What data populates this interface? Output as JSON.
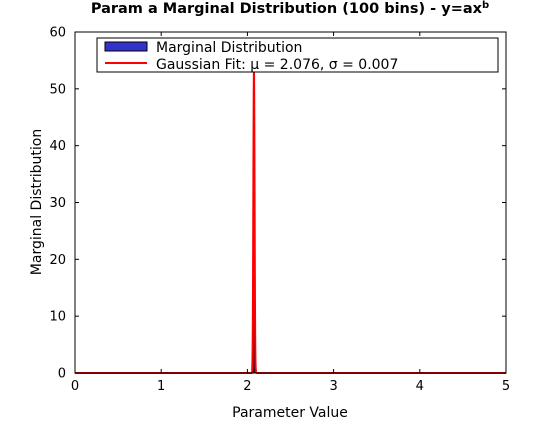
{
  "chart_data": {
    "type": "bar",
    "title": "Param a Marginal Distribution (100 bins) - y=ax",
    "title_superscript": "b",
    "xlabel": "Parameter Value",
    "ylabel": "Marginal Distribution",
    "xlim": [
      0,
      5
    ],
    "ylim": [
      0,
      60
    ],
    "xticks": [
      "0",
      "1",
      "2",
      "3",
      "4",
      "5"
    ],
    "yticks": [
      "0",
      "10",
      "20",
      "30",
      "40",
      "50",
      "60"
    ],
    "grid": false,
    "legend_placement": "top",
    "series": [
      {
        "name": "Marginal Distribution",
        "kind": "histogram",
        "color": "#3333cc",
        "bin_width": 0.0025,
        "bins": [
          {
            "x": 2.0625,
            "y": 4
          },
          {
            "x": 2.065,
            "y": 12
          },
          {
            "x": 2.0675,
            "y": 20
          },
          {
            "x": 2.07,
            "y": 34
          },
          {
            "x": 2.0725,
            "y": 48
          },
          {
            "x": 2.075,
            "y": 53
          },
          {
            "x": 2.0775,
            "y": 50
          },
          {
            "x": 2.08,
            "y": 40
          },
          {
            "x": 2.0825,
            "y": 27
          },
          {
            "x": 2.085,
            "y": 14
          },
          {
            "x": 2.0875,
            "y": 7
          },
          {
            "x": 2.09,
            "y": 2
          }
        ]
      },
      {
        "name": "Gaussian Fit: μ = 2.076, σ  = 0.007",
        "kind": "line",
        "color": "#ff0000",
        "mu": 2.076,
        "sigma": 0.007,
        "peak": 53
      }
    ]
  }
}
